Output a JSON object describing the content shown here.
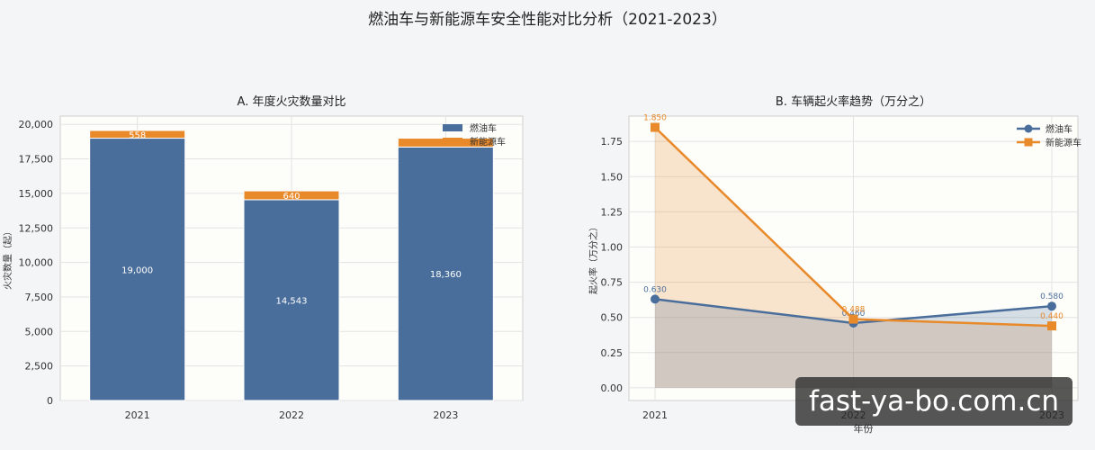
{
  "suptitle": "燃油车与新能源车安全性能对比分析（2021-2023）",
  "watermark": "fast-ya-bo.com.cn",
  "colors": {
    "fuel": "#4a6e9b",
    "ev": "#e8892a"
  },
  "chart_data": [
    {
      "type": "bar",
      "stacked": true,
      "title": "A. 年度火灾数量对比",
      "xlabel": "",
      "ylabel": "火灾数量（起）",
      "categories": [
        "2021",
        "2022",
        "2023"
      ],
      "series": [
        {
          "name": "燃油车",
          "values": [
            19000,
            14543,
            18360
          ],
          "labels": [
            "19,000",
            "14,543",
            "18,360"
          ]
        },
        {
          "name": "新能源车",
          "values": [
            558,
            640,
            640
          ],
          "labels": [
            "558",
            "640",
            ""
          ]
        }
      ],
      "ylim": [
        0,
        20600
      ],
      "yticks": [
        0,
        2500,
        5000,
        7500,
        10000,
        12500,
        15000,
        17500,
        20000
      ],
      "ytick_labels": [
        "0",
        "2,500",
        "5,000",
        "7,500",
        "10,000",
        "12,500",
        "15,000",
        "17,500",
        "20,000"
      ],
      "legend": "top-right",
      "grid": true
    },
    {
      "type": "line",
      "title": "B. 车辆起火率趋势（万分之）",
      "xlabel": "年份",
      "ylabel": "起火率（万分之）",
      "x": [
        "2021",
        "2022",
        "2023"
      ],
      "series": [
        {
          "name": "燃油车",
          "values": [
            0.63,
            0.46,
            0.58
          ],
          "labels": [
            "0.630",
            "0.460",
            "0.580"
          ],
          "marker": "circle",
          "fill": true
        },
        {
          "name": "新能源车",
          "values": [
            1.85,
            0.488,
            0.44
          ],
          "labels": [
            "1.850",
            "0.488",
            "0.440"
          ],
          "marker": "square",
          "fill": true
        }
      ],
      "ylim": [
        -0.09,
        1.93
      ],
      "yticks": [
        0,
        0.25,
        0.5,
        0.75,
        1.0,
        1.25,
        1.5,
        1.75
      ],
      "ytick_labels": [
        "0.00",
        "0.25",
        "0.50",
        "0.75",
        "1.00",
        "1.25",
        "1.50",
        "1.75"
      ],
      "legend": "top-right",
      "grid": true
    }
  ]
}
